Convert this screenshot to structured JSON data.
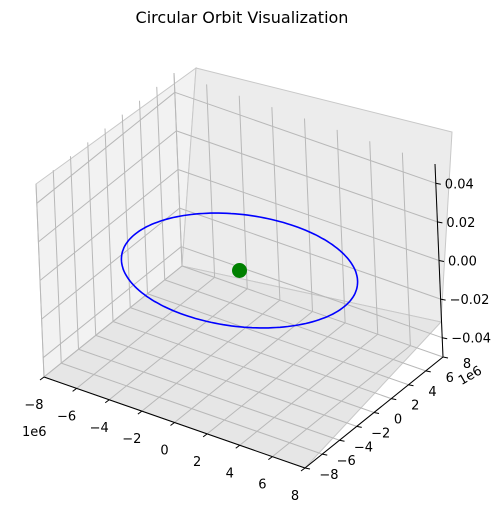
{
  "chart_data": {
    "type": "line",
    "title": "Circular Orbit Visualization",
    "xlabel": "",
    "ylabel": "",
    "zlabel": "",
    "x_offset_label": "1e6",
    "y_offset_label": "1e6",
    "xlim": [
      -8,
      8
    ],
    "ylim": [
      -8,
      8
    ],
    "zlim": [
      -0.05,
      0.05
    ],
    "x_ticks": [
      "−8",
      "−6",
      "−4",
      "−2",
      "0",
      "2",
      "4",
      "6",
      "8"
    ],
    "y_ticks": [
      "−8",
      "−6",
      "−4",
      "−2",
      "0",
      "2",
      "4",
      "6",
      "8"
    ],
    "z_ticks": [
      "−0.04",
      "−0.02",
      "0.00",
      "0.02",
      "0.04"
    ],
    "grid": true,
    "series": [
      {
        "kind": "orbit-line",
        "color": "#0000ff",
        "center": [
          0,
          0,
          0
        ],
        "radius": 6.4
      },
      {
        "kind": "central-body-point",
        "color": "#008000",
        "x": 0,
        "y": 0,
        "z": 0
      }
    ]
  }
}
